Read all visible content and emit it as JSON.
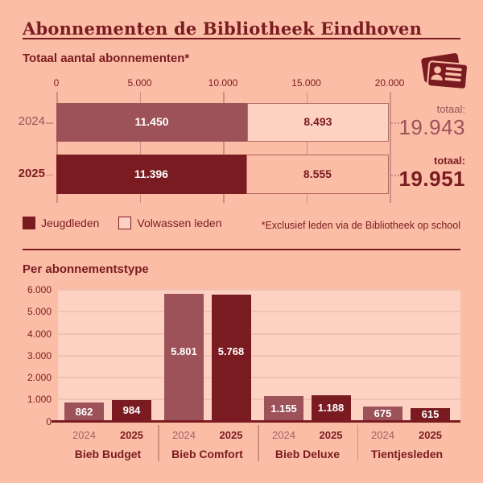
{
  "page": {
    "title": "Abonnementen de Bibliotheek Eindhoven",
    "background_color": "#fcbda6",
    "accent_color": "#7a1b21"
  },
  "sections": {
    "total": {
      "heading": "Totaal aantal abonnementen*",
      "icon": "membership-cards-icon"
    },
    "per_type": {
      "heading": "Per abonnementstype"
    }
  },
  "chart_data": [
    {
      "type": "bar",
      "subtype": "horizontal-stacked",
      "title": "Totaal aantal abonnementen*",
      "x_axis": {
        "ticks": [
          "0",
          "5.000",
          "10.000",
          "15.000",
          "20.000"
        ],
        "values": [
          0,
          5000,
          10000,
          15000,
          20000
        ],
        "max": 20000,
        "grid": true
      },
      "series_names": [
        "Jeugdleden",
        "Volwassen leden"
      ],
      "rows": [
        {
          "year": "2024",
          "values": [
            11450,
            8493
          ],
          "value_labels": [
            "11.450",
            "8.493"
          ],
          "total": 19943,
          "total_label": "19.943",
          "total_prefix": "totaal:",
          "emphasis": false
        },
        {
          "year": "2025",
          "values": [
            11396,
            8555
          ],
          "value_labels": [
            "11.396",
            "8.555"
          ],
          "total": 19951,
          "total_label": "19.951",
          "total_prefix": "totaal:",
          "emphasis": true
        }
      ],
      "legend": [
        {
          "label": "Jeugdleden",
          "swatch": "filled"
        },
        {
          "label": "Volwassen leden",
          "swatch": "outlined"
        }
      ],
      "legend_position": "bottom-left",
      "footnote": "*Exclusief leden via de Bibliotheek op school",
      "colors": {
        "jeugdleden_2024": "#9c5258",
        "jeugdleden_2025": "#7a1b21",
        "volwassen_2024": "#fed2c2",
        "volwassen_2025": "#fcbda6",
        "gridline": "#c99087"
      }
    },
    {
      "type": "bar",
      "subtype": "grouped-vertical",
      "title": "Per abonnementstype",
      "y_axis": {
        "ticks": [
          "0",
          "1.000",
          "2.000",
          "3.000",
          "4.000",
          "5.000",
          "6.000"
        ],
        "values": [
          0,
          1000,
          2000,
          3000,
          4000,
          5000,
          6000
        ],
        "max": 6000,
        "grid": true
      },
      "series_names": [
        "2024",
        "2025"
      ],
      "groups": [
        {
          "label": "Bieb Budget",
          "bars": [
            {
              "year": "2024",
              "value": 862,
              "value_label": "862"
            },
            {
              "year": "2025",
              "value": 984,
              "value_label": "984"
            }
          ]
        },
        {
          "label": "Bieb Comfort",
          "bars": [
            {
              "year": "2024",
              "value": 5801,
              "value_label": "5.801"
            },
            {
              "year": "2025",
              "value": 5768,
              "value_label": "5.768"
            }
          ]
        },
        {
          "label": "Bieb Deluxe",
          "bars": [
            {
              "year": "2024",
              "value": 1155,
              "value_label": "1.155"
            },
            {
              "year": "2025",
              "value": 1188,
              "value_label": "1.188"
            }
          ]
        },
        {
          "label": "Tientjesleden",
          "bars": [
            {
              "year": "2024",
              "value": 675,
              "value_label": "675"
            },
            {
              "year": "2025",
              "value": 615,
              "value_label": "615"
            }
          ]
        }
      ],
      "colors": {
        "bars_2024": "#9c5258",
        "bars_2025": "#7a1b21",
        "plot_background": "#fed2c2",
        "gridline": "#f0c2b4",
        "axis_line": "#7a1b21"
      }
    }
  ]
}
